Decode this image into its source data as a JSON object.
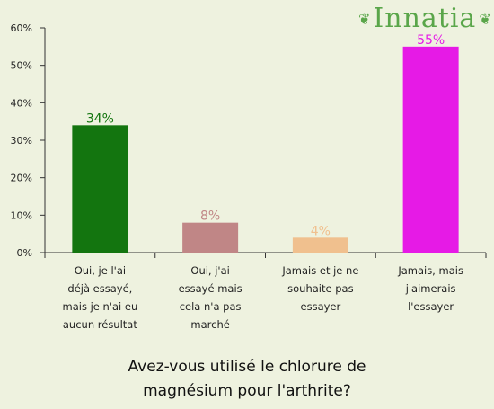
{
  "brand": {
    "name": "Innatia",
    "accent": "#5aa64a"
  },
  "chart_data": {
    "type": "bar",
    "title": "Avez-vous utilisé le chlorure de magnésium pour l'arthrite?",
    "title_lines": [
      "Avez-vous utilisé le chlorure de",
      "magnésium pour l'arthrite?"
    ],
    "categories": [
      "Oui, je l'ai déjà essayé, mais je n'ai eu aucun résultat",
      "Oui, j'ai essayé mais cela n'a pas marché",
      "Jamais et je ne souhaite pas essayer",
      "Jamais, mais j'aimerais l'essayer"
    ],
    "category_lines": [
      [
        "Oui, je l'ai",
        "déjà essayé,",
        "mais je n'ai eu",
        "aucun résultat"
      ],
      [
        "Oui, j'ai",
        "essayé mais",
        "cela n'a pas",
        "marché"
      ],
      [
        "Jamais et je ne",
        "souhaite pas",
        "essayer"
      ],
      [
        "Jamais, mais",
        "j'aimerais",
        "l'essayer"
      ]
    ],
    "values": [
      34,
      8,
      4,
      55
    ],
    "value_labels": [
      "34%",
      "8%",
      "4%",
      "55%"
    ],
    "colors": [
      "#13750f",
      "#c08686",
      "#f0c08e",
      "#e61ae6"
    ],
    "label_colors": [
      "#13750f",
      "#c08686",
      "#f0c08e",
      "#e61ae6"
    ],
    "ylim": [
      0,
      60
    ],
    "yticks": [
      0,
      10,
      20,
      30,
      40,
      50,
      60
    ],
    "ytick_labels": [
      "0%",
      "10%",
      "20%",
      "30%",
      "40%",
      "50%",
      "60%"
    ],
    "xlabel": "",
    "ylabel": "",
    "grid": false
  }
}
